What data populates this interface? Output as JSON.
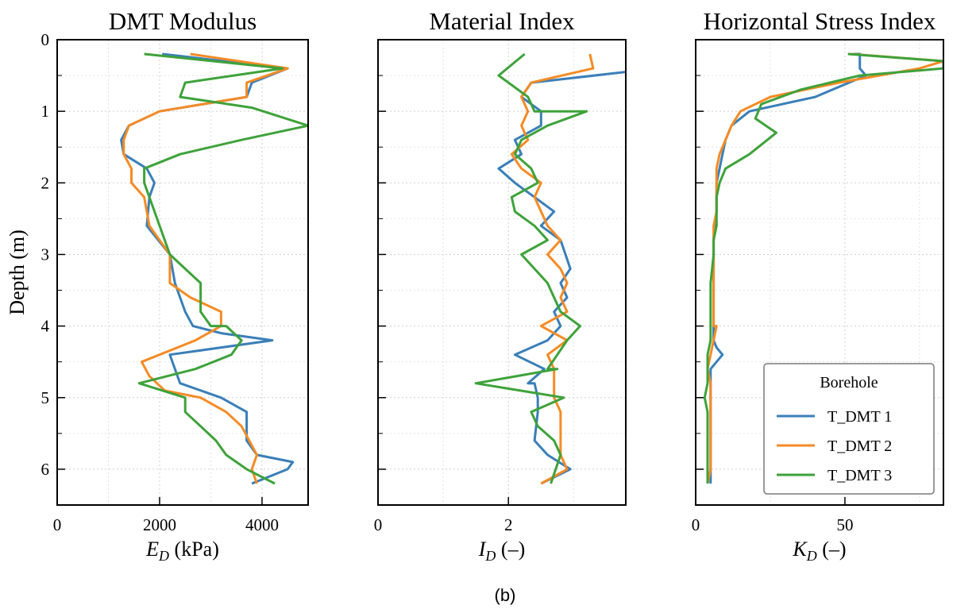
{
  "caption": "(b)",
  "colors": {
    "T_DMT 1": "#3a7fb8",
    "T_DMT 2": "#f58b25",
    "T_DMT 3": "#3ea23a"
  },
  "legend": {
    "title": "Borehole",
    "placement": "lower-right",
    "panel": 2
  },
  "chart_data": [
    {
      "type": "line",
      "title": "DMT Modulus",
      "xlabel_main": "E",
      "xlabel_sub": "D",
      "xlabel_unit": " (kPa)",
      "ylabel": "Depth (m)",
      "xlim": [
        0,
        4900
      ],
      "ylim": [
        6.5,
        0
      ],
      "xticks": [
        0,
        2000,
        4000
      ],
      "xtick_labels": [
        "0",
        "2000",
        "4000"
      ],
      "yticks": [
        0,
        1,
        2,
        3,
        4,
        5,
        6
      ],
      "ytick_labels": [
        "0",
        "1",
        "2",
        "3",
        "4",
        "5",
        "6"
      ],
      "grid": true,
      "series": [
        {
          "name": "T_DMT 1",
          "x": [
            2050,
            4500,
            3800,
            3700,
            2000,
            1400,
            1250,
            1300,
            1750,
            1900,
            1800,
            1750,
            2200,
            2300,
            2500,
            2650,
            3200,
            4200,
            2200,
            2300,
            2400,
            3200,
            3700,
            3700,
            3900,
            4600,
            4500,
            3800
          ],
          "y": [
            0.2,
            0.4,
            0.6,
            0.8,
            1.0,
            1.2,
            1.4,
            1.6,
            1.8,
            2.0,
            2.2,
            2.6,
            3.0,
            3.4,
            3.8,
            4.0,
            4.1,
            4.2,
            4.4,
            4.6,
            4.8,
            5.0,
            5.2,
            5.6,
            5.8,
            5.9,
            6.0,
            6.2
          ]
        },
        {
          "name": "T_DMT 2",
          "x": [
            2600,
            4500,
            3700,
            3700,
            2000,
            1400,
            1300,
            1300,
            1450,
            1450,
            1700,
            1800,
            2200,
            2200,
            2600,
            3200,
            3200,
            2700,
            1650,
            1800,
            2100,
            2800,
            3300,
            3600,
            3900,
            3800,
            3900
          ],
          "y": [
            0.2,
            0.4,
            0.6,
            0.8,
            1.0,
            1.2,
            1.4,
            1.6,
            1.8,
            2.0,
            2.2,
            2.6,
            3.0,
            3.4,
            3.6,
            3.8,
            4.0,
            4.2,
            4.5,
            4.7,
            4.9,
            5.0,
            5.2,
            5.4,
            5.8,
            6.0,
            6.2
          ]
        },
        {
          "name": "T_DMT 3",
          "x": [
            1700,
            4400,
            2500,
            2400,
            3800,
            4900,
            3600,
            2400,
            1700,
            1700,
            1800,
            2000,
            2100,
            2200,
            2500,
            2800,
            2800,
            2800,
            3000,
            3300,
            3600,
            3400,
            2700,
            1600,
            2500,
            2500,
            2800,
            3100,
            3300,
            3700,
            4250
          ],
          "y": [
            0.2,
            0.4,
            0.6,
            0.8,
            0.95,
            1.2,
            1.4,
            1.6,
            1.8,
            2.0,
            2.2,
            2.6,
            2.8,
            3.0,
            3.2,
            3.4,
            3.6,
            3.8,
            4.0,
            4.0,
            4.2,
            4.4,
            4.6,
            4.8,
            5.0,
            5.2,
            5.4,
            5.6,
            5.8,
            6.0,
            6.2
          ]
        }
      ]
    },
    {
      "type": "line",
      "title": "Material Index",
      "xlabel_main": "I",
      "xlabel_sub": "D",
      "xlabel_unit": " (–)",
      "ylabel": "",
      "xlim": [
        0,
        3.8
      ],
      "ylim": [
        6.5,
        0
      ],
      "xticks": [
        0,
        2
      ],
      "xtick_labels": [
        "0",
        "2"
      ],
      "yticks": [
        0,
        1,
        2,
        3,
        4,
        5,
        6
      ],
      "ytick_labels": [],
      "grid": true,
      "series": [
        {
          "name": "T_DMT 1",
          "x": [
            3.8,
            2.35,
            2.2,
            2.5,
            2.5,
            2.1,
            2.2,
            1.85,
            2.1,
            2.4,
            2.7,
            2.5,
            2.8,
            2.95,
            2.8,
            2.9,
            2.7,
            2.8,
            2.6,
            2.1,
            2.55,
            2.3,
            2.4,
            2.45,
            2.45,
            2.4,
            2.6,
            2.95,
            2.5
          ],
          "y": [
            0.45,
            0.6,
            0.8,
            1.0,
            1.2,
            1.4,
            1.6,
            1.8,
            2.0,
            2.2,
            2.4,
            2.6,
            2.8,
            3.2,
            3.4,
            3.6,
            3.8,
            4.0,
            4.2,
            4.4,
            4.6,
            4.8,
            4.8,
            5.0,
            5.2,
            5.6,
            5.8,
            6.0,
            6.2
          ]
        },
        {
          "name": "T_DMT 2",
          "x": [
            3.25,
            3.3,
            2.35,
            2.2,
            2.3,
            2.2,
            2.3,
            2.05,
            2.2,
            2.5,
            2.4,
            2.6,
            2.8,
            2.6,
            2.8,
            2.9,
            2.8,
            2.9,
            2.5,
            2.9,
            2.6,
            2.7,
            2.7,
            2.7,
            2.8,
            2.8,
            2.8,
            2.9,
            2.5
          ],
          "y": [
            0.2,
            0.4,
            0.6,
            0.8,
            1.0,
            1.2,
            1.4,
            1.6,
            1.8,
            2.0,
            2.2,
            2.6,
            2.8,
            3.0,
            3.2,
            3.4,
            3.6,
            3.8,
            4.0,
            4.2,
            4.4,
            4.6,
            4.8,
            5.0,
            5.2,
            5.6,
            5.8,
            6.0,
            6.2
          ]
        },
        {
          "name": "T_DMT 3",
          "x": [
            2.25,
            1.85,
            2.3,
            2.4,
            3.2,
            2.6,
            2.2,
            2.1,
            2.35,
            2.45,
            2.05,
            2.1,
            2.4,
            2.6,
            2.2,
            2.4,
            2.6,
            2.7,
            2.8,
            3.1,
            2.9,
            2.75,
            2.6,
            2.75,
            1.5,
            2.85,
            2.35,
            2.45,
            2.7,
            2.8,
            2.65
          ],
          "y": [
            0.2,
            0.5,
            0.8,
            1.0,
            1.0,
            1.2,
            1.4,
            1.6,
            1.8,
            2.0,
            2.2,
            2.4,
            2.6,
            2.8,
            3.0,
            3.2,
            3.4,
            3.6,
            3.8,
            4.0,
            4.2,
            4.4,
            4.6,
            4.6,
            4.8,
            5.0,
            5.2,
            5.4,
            5.6,
            5.8,
            6.2
          ]
        }
      ]
    },
    {
      "type": "line",
      "title": "Horizontal Stress Index",
      "xlabel_main": "K",
      "xlabel_sub": "D",
      "xlabel_unit": " (–)",
      "ylabel": "",
      "xlim": [
        0,
        83
      ],
      "ylim": [
        6.5,
        0
      ],
      "xticks": [
        0,
        50
      ],
      "xtick_labels": [
        "0",
        "50"
      ],
      "yticks": [
        0,
        1,
        2,
        3,
        4,
        5,
        6
      ],
      "ytick_labels": [],
      "grid": true,
      "series": [
        {
          "name": "T_DMT 1",
          "x": [
            53,
            55,
            55,
            57,
            40,
            18,
            12,
            10,
            9,
            8,
            7,
            7,
            6,
            6,
            6,
            6,
            6,
            6,
            6,
            7,
            9,
            5,
            5,
            5,
            5,
            5,
            5,
            5,
            5,
            5,
            5
          ],
          "y": [
            0.2,
            0.2,
            0.4,
            0.5,
            0.8,
            1.0,
            1.2,
            1.4,
            1.6,
            1.8,
            2.0,
            2.4,
            2.8,
            3.2,
            3.6,
            3.8,
            4.0,
            4.1,
            4.2,
            4.3,
            4.4,
            4.6,
            4.8,
            5.0,
            5.2,
            5.4,
            5.6,
            5.8,
            6.0,
            6.1,
            6.2
          ]
        },
        {
          "name": "T_DMT 2",
          "x": [
            52,
            83,
            75,
            48,
            25,
            15,
            12,
            10,
            8,
            7,
            7,
            7,
            6,
            6,
            6,
            6,
            6,
            6,
            6,
            7,
            6,
            5,
            4,
            5,
            5,
            5,
            5,
            5,
            5,
            4
          ],
          "y": [
            0.2,
            0.3,
            0.4,
            0.6,
            0.8,
            1.0,
            1.2,
            1.4,
            1.6,
            1.8,
            2.0,
            2.4,
            2.6,
            3.0,
            3.2,
            3.4,
            3.6,
            3.8,
            4.0,
            4.0,
            4.2,
            4.4,
            4.6,
            4.8,
            5.0,
            5.2,
            5.4,
            5.8,
            6.0,
            6.2
          ]
        },
        {
          "name": "T_DMT 3",
          "x": [
            51,
            83,
            83,
            55,
            35,
            22,
            20,
            27,
            18,
            10,
            8,
            7,
            7,
            6,
            6,
            5,
            5,
            5,
            5,
            4,
            4,
            4,
            3,
            4,
            4,
            4,
            4,
            4
          ],
          "y": [
            0.2,
            0.3,
            0.4,
            0.5,
            0.7,
            0.9,
            1.1,
            1.3,
            1.6,
            1.8,
            2.0,
            2.2,
            2.6,
            2.8,
            3.0,
            3.4,
            3.8,
            4.0,
            4.2,
            4.4,
            4.6,
            4.8,
            5.0,
            5.2,
            5.6,
            5.8,
            6.0,
            6.2
          ]
        }
      ]
    }
  ]
}
